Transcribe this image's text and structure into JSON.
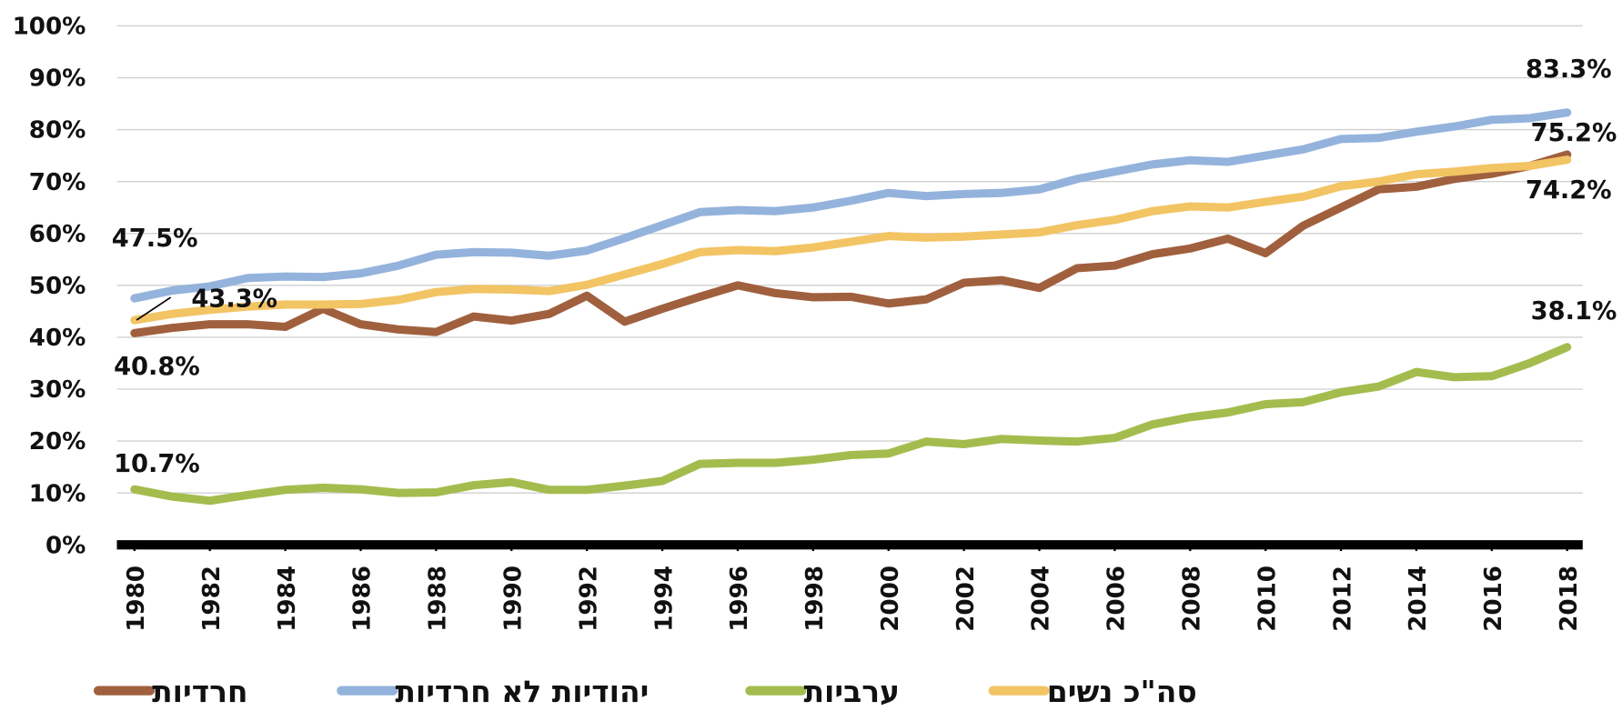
{
  "chart_data": {
    "type": "line",
    "x": [
      1980,
      1981,
      1982,
      1983,
      1984,
      1985,
      1986,
      1987,
      1988,
      1989,
      1990,
      1991,
      1992,
      1993,
      1994,
      1995,
      1996,
      1997,
      1998,
      1999,
      2000,
      2001,
      2002,
      2003,
      2004,
      2005,
      2006,
      2007,
      2008,
      2009,
      2010,
      2011,
      2012,
      2013,
      2014,
      2015,
      2016,
      2017,
      2018
    ],
    "xlim": [
      1980,
      2018
    ],
    "xticks": [
      1980,
      1982,
      1984,
      1986,
      1988,
      1990,
      1992,
      1994,
      1996,
      1998,
      2000,
      2002,
      2004,
      2006,
      2008,
      2010,
      2012,
      2014,
      2016,
      2018
    ],
    "ylim": [
      0,
      100
    ],
    "yticks": [
      {
        "value": 0,
        "label": "0%"
      },
      {
        "value": 10,
        "label": "10%"
      },
      {
        "value": 20,
        "label": "20%"
      },
      {
        "value": 30,
        "label": "30%"
      },
      {
        "value": 40,
        "label": "40%"
      },
      {
        "value": 50,
        "label": "50%"
      },
      {
        "value": 60,
        "label": "60%"
      },
      {
        "value": 70,
        "label": "70%"
      },
      {
        "value": 80,
        "label": "80%"
      },
      {
        "value": 90,
        "label": "90%"
      },
      {
        "value": 100,
        "label": "100%"
      }
    ],
    "grid": true,
    "legend": "bottom",
    "series": [
      {
        "name": "חרדיות",
        "color": "#a0603e",
        "values": [
          40.8,
          41.8,
          42.5,
          42.5,
          42,
          45.5,
          42.5,
          41.5,
          41,
          44,
          43.2,
          44.5,
          48,
          43,
          45.5,
          47.8,
          50,
          48.5,
          47.7,
          47.8,
          46.5,
          47.3,
          50.5,
          51,
          49.5,
          53.3,
          53.8,
          56,
          57.1,
          59,
          56.2,
          61.5,
          65,
          68.5,
          69,
          70.5,
          71.5,
          73,
          75.2
        ],
        "value_labels": [
          "40.8%",
          null,
          null,
          null,
          null,
          null,
          null,
          null,
          null,
          null,
          null,
          null,
          null,
          null,
          null,
          null,
          null,
          null,
          null,
          null,
          null,
          null,
          null,
          null,
          null,
          null,
          null,
          null,
          null,
          null,
          null,
          null,
          null,
          null,
          null,
          null,
          null,
          null,
          "75.2%"
        ]
      },
      {
        "name": "יהודיות לא חרדיות",
        "color": "#94b3dc",
        "values": [
          47.5,
          49,
          49.8,
          51.4,
          51.7,
          51.6,
          52.3,
          53.8,
          55.9,
          56.4,
          56.3,
          55.7,
          56.7,
          59.1,
          61.6,
          64.1,
          64.5,
          64.3,
          65,
          66.3,
          67.8,
          67.2,
          67.6,
          67.8,
          68.5,
          70.5,
          71.9,
          73.3,
          74.1,
          73.8,
          75,
          76.2,
          78.2,
          78.4,
          79.6,
          80.6,
          81.9,
          82.2,
          83.3
        ],
        "value_labels": [
          "47.5%",
          null,
          null,
          null,
          null,
          null,
          null,
          null,
          null,
          null,
          null,
          null,
          null,
          null,
          null,
          null,
          null,
          null,
          null,
          null,
          null,
          null,
          null,
          null,
          null,
          null,
          null,
          null,
          null,
          null,
          null,
          null,
          null,
          null,
          null,
          null,
          null,
          null,
          "83.3%"
        ]
      },
      {
        "name": "ערביות",
        "color": "#a4bc4e",
        "values": [
          10.7,
          9.3,
          8.5,
          9.6,
          10.6,
          11,
          10.7,
          10,
          10.1,
          11.5,
          12.1,
          10.6,
          10.6,
          11.4,
          12.3,
          15.6,
          15.8,
          15.8,
          16.4,
          17.3,
          17.6,
          19.9,
          19.4,
          20.4,
          20.1,
          19.9,
          20.6,
          23.2,
          24.6,
          25.5,
          27.1,
          27.5,
          29.4,
          30.5,
          33.3,
          32.3,
          32.5,
          35,
          38.1
        ],
        "value_labels": [
          "10.7%",
          null,
          null,
          null,
          null,
          null,
          null,
          null,
          null,
          null,
          null,
          null,
          null,
          null,
          null,
          null,
          null,
          null,
          null,
          null,
          null,
          null,
          null,
          null,
          null,
          null,
          null,
          null,
          null,
          null,
          null,
          null,
          null,
          null,
          null,
          null,
          null,
          null,
          "38.1%"
        ]
      },
      {
        "name": "סה\"כ נשים",
        "color": "#f2c464",
        "values": [
          43.3,
          44.5,
          45.3,
          45.9,
          46.3,
          46.3,
          46.4,
          47.2,
          48.7,
          49.3,
          49.2,
          48.9,
          50.1,
          52.1,
          54.1,
          56.4,
          56.8,
          56.6,
          57.3,
          58.4,
          59.5,
          59.2,
          59.4,
          59.8,
          60.2,
          61.6,
          62.6,
          64.3,
          65.2,
          65,
          66.1,
          67.1,
          69.1,
          70,
          71.4,
          71.9,
          72.6,
          73,
          74.2
        ],
        "value_labels": [
          "43.3%",
          null,
          null,
          null,
          null,
          null,
          null,
          null,
          null,
          null,
          null,
          null,
          null,
          null,
          null,
          null,
          null,
          null,
          null,
          null,
          null,
          null,
          null,
          null,
          null,
          null,
          null,
          null,
          null,
          null,
          null,
          null,
          null,
          null,
          null,
          null,
          null,
          null,
          "74.2%"
        ]
      }
    ]
  }
}
